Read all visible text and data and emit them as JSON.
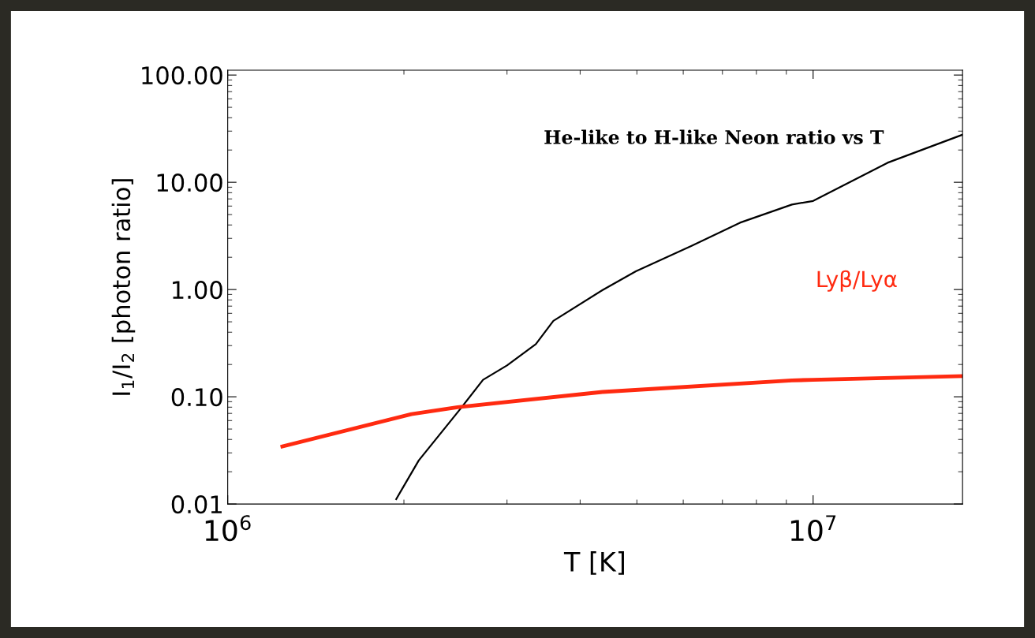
{
  "chart_data": {
    "type": "line",
    "xlabel": "T [K]",
    "ylabel": "I$_{1}$/I$_{2}$ [photon ratio]",
    "log": "xy",
    "xlim": [
      1000000,
      18000000
    ],
    "ylim": [
      0.01,
      111
    ],
    "xticks": [
      {
        "value": 1000000,
        "label": "10$^{6}$"
      },
      {
        "value": 10000000,
        "label": "10$^{7}$"
      }
    ],
    "yticks": [
      {
        "value": 0.01,
        "label": "0.01"
      },
      {
        "value": 0.1,
        "label": "0.10"
      },
      {
        "value": 1,
        "label": "1.00"
      },
      {
        "value": 10,
        "label": "10.00"
      },
      {
        "value": 100,
        "label": "100.00"
      }
    ],
    "grid": false,
    "legend": false,
    "marker": "none",
    "line_style": "solid",
    "series": [
      {
        "name": "He-like to H-like Neon ratio vs T",
        "color": "#000000",
        "x": [
          1940000,
          2120000,
          2490000,
          2730000,
          3000000,
          3360000,
          3600000,
          4370000,
          4980000,
          6200000,
          7500000,
          9200000,
          10000000,
          13400000,
          18000000
        ],
        "values": [
          0.0111,
          0.0255,
          0.0756,
          0.144,
          0.196,
          0.31,
          0.51,
          0.99,
          1.48,
          2.55,
          4.2,
          6.2,
          6.7,
          15.2,
          27.8
        ]
      },
      {
        "name": "Lyβ/Lyα",
        "color": "#ff2a10",
        "x": [
          1240000,
          2060000,
          2470000,
          4370000,
          9200000,
          10000000,
          18000000
        ],
        "values": [
          0.0344,
          0.0689,
          0.08,
          0.111,
          0.142,
          0.144,
          0.156
        ]
      }
    ]
  }
}
